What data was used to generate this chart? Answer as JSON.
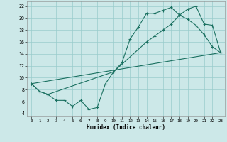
{
  "xlabel": "Humidex (Indice chaleur)",
  "bg_color": "#cce8e8",
  "grid_color": "#99cccc",
  "line_color": "#1a7060",
  "xlim_min": -0.5,
  "xlim_max": 23.5,
  "ylim_min": 3.5,
  "ylim_max": 22.8,
  "xticks": [
    0,
    1,
    2,
    3,
    4,
    5,
    6,
    7,
    8,
    9,
    10,
    11,
    12,
    13,
    14,
    15,
    16,
    17,
    18,
    19,
    20,
    21,
    22,
    23
  ],
  "yticks": [
    4,
    6,
    8,
    10,
    12,
    14,
    16,
    18,
    20,
    22
  ],
  "curve1_x": [
    0,
    1,
    2,
    3,
    4,
    5,
    6,
    7,
    8,
    9,
    10,
    11,
    12,
    13,
    14,
    15,
    16,
    17,
    18,
    19,
    20,
    21,
    22,
    23
  ],
  "curve1_y": [
    9.0,
    7.7,
    7.2,
    6.2,
    6.2,
    5.2,
    6.2,
    4.7,
    5.0,
    9.0,
    11.0,
    12.5,
    16.5,
    18.5,
    20.8,
    20.8,
    21.3,
    21.8,
    20.5,
    19.8,
    18.8,
    17.2,
    15.2,
    14.2
  ],
  "curve2_x": [
    0,
    1,
    2,
    10,
    14,
    15,
    16,
    17,
    18,
    19,
    20,
    21,
    22,
    23
  ],
  "curve2_y": [
    9.0,
    7.7,
    7.2,
    11.0,
    16.0,
    17.0,
    18.0,
    19.0,
    20.5,
    21.5,
    22.0,
    19.0,
    18.8,
    14.2
  ],
  "line_x": [
    0,
    23
  ],
  "line_y": [
    9.0,
    14.2
  ]
}
